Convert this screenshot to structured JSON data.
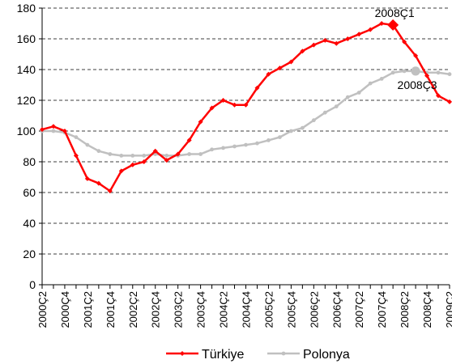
{
  "chart_data": {
    "type": "line",
    "categories": [
      "2000Ç2",
      null,
      "2000Ç4",
      null,
      "2001Ç2",
      null,
      "2001Ç4",
      null,
      "2002Ç2",
      null,
      "2002Ç4",
      null,
      "2003Ç2",
      null,
      "2003Ç4",
      null,
      "2004Ç2",
      null,
      "2004Ç4",
      null,
      "2005Ç2",
      null,
      "2005Ç4",
      null,
      "2006Ç2",
      null,
      "2006Ç4",
      null,
      "2007Ç2",
      null,
      "2007Ç4",
      null,
      "2008Ç2",
      null,
      "2008Ç4",
      null,
      "2009Ç2"
    ],
    "series": [
      {
        "name": "Türkiye",
        "color": "#ff0000",
        "marker": "diamond",
        "values": [
          101,
          103,
          100,
          84,
          69,
          66,
          61,
          74,
          78,
          80,
          87,
          81,
          85,
          94,
          106,
          115,
          120,
          117,
          117,
          128,
          137,
          141,
          145,
          152,
          156,
          159,
          157,
          160,
          163,
          166,
          170,
          169,
          158,
          149,
          136,
          123,
          119
        ]
      },
      {
        "name": "Polonya",
        "color": "#c0c0c0",
        "marker": "circle",
        "values": [
          100,
          100,
          99,
          96,
          91,
          87,
          85,
          84,
          84,
          84,
          85,
          84,
          84,
          85,
          85,
          88,
          89,
          90,
          91,
          92,
          94,
          96,
          100,
          102,
          107,
          112,
          116,
          122,
          125,
          131,
          134,
          138,
          139,
          139,
          138,
          138,
          137
        ]
      }
    ],
    "annotations": [
      {
        "text": "2008Ç1",
        "series": 0,
        "index": 31
      },
      {
        "text": "2008Ç3",
        "series": 1,
        "index": 33
      }
    ],
    "ylim": [
      0,
      180
    ],
    "yticks": [
      0,
      20,
      40,
      60,
      80,
      100,
      120,
      140,
      160,
      180
    ],
    "grid": true,
    "legend": "bottom"
  }
}
